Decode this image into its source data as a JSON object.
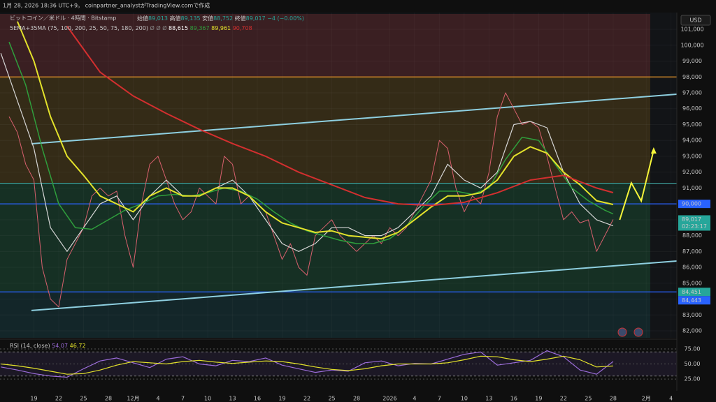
{
  "header": {
    "created": "1月 28, 2026 18:36 UTC+9。 coinpartner_analystがTradingView.comで作成",
    "symbol": "ビットコイン／米ドル · 4時間 · Bitstamp",
    "ohlc": [
      {
        "label": "始値",
        "value": "89,013"
      },
      {
        "label": "高値",
        "value": "89,135"
      },
      {
        "label": "安値",
        "value": "88,752"
      },
      {
        "label": "終値",
        "value": "89,017"
      }
    ],
    "change": "−4 (−0.00%)",
    "indicator": "5EMA+35MA (75, 100, 200, 25, 50, 75, 180, 200)",
    "indicator_icons": "Ø Ø Ø",
    "currency": "USD"
  },
  "chart_data": [
    {
      "type": "line",
      "xlim": [
        -10.1,
        71.7
      ],
      "ylim": [
        81560,
        101970
      ],
      "yticks": [
        {
          "value": 82000,
          "label": "82,000"
        },
        {
          "value": 83000,
          "label": "83,000"
        },
        {
          "value": 84000,
          "label": "84,000"
        },
        {
          "value": 85000,
          "label": "85,000"
        },
        {
          "value": 86000,
          "label": "86,000"
        },
        {
          "value": 87000,
          "label": "87,000"
        },
        {
          "value": 88000,
          "label": "88,000"
        },
        {
          "value": 89000,
          "label": "89,000"
        },
        {
          "value": 90000,
          "label": "90,000"
        },
        {
          "value": 91000,
          "label": "91,000"
        },
        {
          "value": 92000,
          "label": "92,000"
        },
        {
          "value": 93000,
          "label": "93,000"
        },
        {
          "value": 94000,
          "label": "94,000"
        },
        {
          "value": 95000,
          "label": "95,000"
        },
        {
          "value": 96000,
          "label": "96,000"
        },
        {
          "value": 97000,
          "label": "97,000"
        },
        {
          "value": 98000,
          "label": "98,000"
        },
        {
          "value": 99000,
          "label": "99,000"
        },
        {
          "value": 100000,
          "label": "100,000"
        },
        {
          "value": 101000,
          "label": "101,000"
        }
      ],
      "xticks": [
        {
          "value": -6,
          "label": "19"
        },
        {
          "value": -3,
          "label": "22"
        },
        {
          "value": 0,
          "label": "25"
        },
        {
          "value": 3,
          "label": "28"
        },
        {
          "value": 6,
          "label": "12月"
        },
        {
          "value": 9,
          "label": "4"
        },
        {
          "value": 12,
          "label": "7"
        },
        {
          "value": 15,
          "label": "10"
        },
        {
          "value": 18,
          "label": "13"
        },
        {
          "value": 21,
          "label": "16"
        },
        {
          "value": 24,
          "label": "19"
        },
        {
          "value": 27,
          "label": "22"
        },
        {
          "value": 30,
          "label": "25"
        },
        {
          "value": 33,
          "label": "28"
        },
        {
          "value": 37,
          "label": "2026"
        },
        {
          "value": 40,
          "label": "4"
        },
        {
          "value": 43,
          "label": "7"
        },
        {
          "value": 46,
          "label": "10"
        },
        {
          "value": 49,
          "label": "13"
        },
        {
          "value": 52,
          "label": "16"
        },
        {
          "value": 55,
          "label": "19"
        },
        {
          "value": 58,
          "label": "22"
        },
        {
          "value": 61,
          "label": "25"
        },
        {
          "value": 64,
          "label": "28"
        },
        {
          "value": 68,
          "label": "2月"
        },
        {
          "value": 71,
          "label": "4"
        }
      ],
      "zones": [
        {
          "from": 98000,
          "to": 101970,
          "color": "#3a1f22"
        },
        {
          "from": 91300,
          "to": 98000,
          "color": "#342b17"
        },
        {
          "from": 84451,
          "to": 91300,
          "color": "#163024"
        },
        {
          "from": 81560,
          "to": 84451,
          "color": "#132629"
        }
      ],
      "hlines": [
        {
          "value": 98000,
          "color": "#e8962a"
        },
        {
          "value": 91300,
          "color": "#3fa5a0"
        },
        {
          "value": 90000,
          "color": "#2962ff"
        },
        {
          "value": 84451,
          "color": "#2962ff"
        }
      ],
      "trendlines": [
        {
          "x": [
            -6.3,
            71.7
          ],
          "values": [
            93790,
            96910
          ],
          "color": "#8ecfe0"
        },
        {
          "x": [
            -6.3,
            71.7
          ],
          "values": [
            83280,
            86400
          ],
          "color": "#8ecfe0"
        }
      ],
      "projection": {
        "x": [
          64.8,
          66.2,
          67.4,
          68.9
        ],
        "values": [
          88995,
          91326,
          90180,
          93392
        ],
        "color": "#f5f53a"
      },
      "series": [
        {
          "color": "#d9606e",
          "width": 1,
          "x": [
            -9,
            -8,
            -7,
            -6,
            -5,
            -4,
            -3,
            -2,
            -1,
            0,
            1,
            2,
            3,
            4,
            5,
            6,
            7,
            8,
            9,
            10,
            11,
            12,
            13,
            14,
            15,
            16,
            17,
            18,
            19,
            20,
            21,
            22,
            23,
            24,
            25,
            26,
            27,
            28,
            29,
            30,
            31,
            32,
            33,
            34,
            35,
            36,
            37,
            38,
            39,
            40,
            41,
            42,
            43,
            44,
            45,
            46,
            47,
            48,
            49,
            50,
            51,
            52,
            53,
            54,
            55,
            56,
            57,
            58,
            59,
            60,
            61,
            62,
            63,
            64
          ],
          "values": [
            95500,
            94500,
            92500,
            91500,
            86000,
            84000,
            83500,
            86500,
            87500,
            88500,
            90500,
            91000,
            90500,
            90800,
            88000,
            86000,
            90000,
            92500,
            93000,
            91500,
            90000,
            89000,
            89500,
            91000,
            90500,
            90000,
            93000,
            92500,
            90000,
            90500,
            90000,
            89500,
            88000,
            86500,
            87500,
            86000,
            85500,
            88000,
            88500,
            89000,
            88000,
            87500,
            87000,
            87500,
            88000,
            87500,
            88500,
            88000,
            88500,
            89500,
            90500,
            91500,
            94000,
            93500,
            91000,
            89500,
            90500,
            90000,
            92000,
            95500,
            97000,
            96000,
            95000,
            95200,
            94800,
            93000,
            91000,
            89000,
            89500,
            88800,
            89000,
            87000,
            88000,
            89017
          ]
        },
        {
          "color": "#d6d6d6",
          "width": 1.2,
          "last_label": "88,615",
          "x": [
            -10,
            -8,
            -6,
            -4,
            -2,
            0,
            2,
            4,
            6,
            8,
            10,
            12,
            14,
            16,
            18,
            20,
            22,
            24,
            26,
            28,
            30,
            32,
            34,
            36,
            38,
            40,
            42,
            44,
            46,
            48,
            50,
            52,
            54,
            56,
            58,
            60,
            62,
            64
          ],
          "values": [
            99500,
            96500,
            93500,
            88500,
            87000,
            88500,
            90000,
            90500,
            89000,
            90500,
            91500,
            90500,
            90500,
            91000,
            91500,
            90500,
            89000,
            87500,
            87000,
            87500,
            88500,
            88500,
            88000,
            88000,
            88500,
            89500,
            90500,
            92500,
            91500,
            91000,
            92000,
            95000,
            95200,
            94800,
            92000,
            90000,
            89000,
            88615
          ]
        },
        {
          "color": "#2f9e3c",
          "width": 1.5,
          "last_label": "89,367",
          "x": [
            -9,
            -7,
            -5,
            -3,
            -1,
            1,
            3,
            5,
            7,
            9,
            11,
            13,
            15,
            17,
            19,
            21,
            23,
            25,
            27,
            29,
            31,
            33,
            35,
            37,
            39,
            41,
            43,
            45,
            47,
            49,
            51,
            53,
            55,
            57,
            59,
            61,
            63,
            64
          ],
          "values": [
            100200,
            97500,
            93500,
            90000,
            88500,
            88400,
            89000,
            89600,
            90000,
            90500,
            90600,
            90500,
            90700,
            91000,
            90800,
            90300,
            89500,
            88800,
            88300,
            88000,
            87700,
            87500,
            87500,
            87800,
            88600,
            89800,
            90800,
            90800,
            90600,
            91000,
            92800,
            94200,
            94000,
            92500,
            91000,
            90200,
            89600,
            89367
          ]
        },
        {
          "color": "#e3e22b",
          "width": 2,
          "last_label": "89,961",
          "x": [
            -8,
            -6,
            -4,
            -2,
            0,
            2,
            4,
            6,
            8,
            10,
            12,
            14,
            16,
            18,
            20,
            22,
            24,
            26,
            28,
            30,
            32,
            34,
            36,
            38,
            40,
            42,
            44,
            46,
            48,
            50,
            52,
            54,
            56,
            58,
            60,
            62,
            64
          ],
          "values": [
            101500,
            99000,
            95500,
            93000,
            91800,
            90500,
            90000,
            89500,
            90500,
            91000,
            90500,
            90500,
            91000,
            91000,
            90500,
            89500,
            88800,
            88500,
            88200,
            88300,
            88000,
            87900,
            87800,
            88200,
            89000,
            89800,
            90500,
            90500,
            90700,
            91500,
            93000,
            93600,
            93200,
            92000,
            91200,
            90200,
            89961
          ]
        },
        {
          "color": "#d32f2f",
          "width": 2,
          "last_label": "90,708",
          "x": [
            -2,
            2,
            6,
            10,
            14,
            18,
            22,
            26,
            30,
            34,
            38,
            42,
            46,
            50,
            54,
            58,
            62,
            64
          ],
          "values": [
            101200,
            98300,
            96800,
            95700,
            94700,
            93800,
            93000,
            92000,
            91200,
            90400,
            90000,
            89900,
            90100,
            90700,
            91500,
            91800,
            91000,
            90708
          ]
        }
      ],
      "price_labels": [
        {
          "value": 90000,
          "label": "90,000",
          "color": "#2962ff"
        },
        {
          "value": 89017,
          "label": "89,017",
          "sub": "02:23:17",
          "color": "#26a69a"
        },
        {
          "value": 84451,
          "label": "84,451",
          "color": "#26a69a"
        },
        {
          "value": 84443,
          "label": "84,443",
          "color": "#2962ff"
        }
      ]
    },
    {
      "type": "line",
      "title": "RSI (14, close)",
      "xlim": [
        -10.1,
        71.7
      ],
      "ylim": [
        17,
        90
      ],
      "band": [
        30,
        70
      ],
      "yticks": [
        {
          "value": 25,
          "label": "25.00"
        },
        {
          "value": 50,
          "label": "50.00"
        },
        {
          "value": 75,
          "label": "75.00"
        }
      ],
      "series": [
        {
          "color": "#9c6ddb",
          "x": [
            -10,
            -8,
            -6,
            -4,
            -2,
            0,
            2,
            4,
            6,
            8,
            10,
            12,
            14,
            16,
            18,
            20,
            22,
            24,
            26,
            28,
            30,
            32,
            34,
            36,
            38,
            40,
            42,
            44,
            46,
            48,
            50,
            52,
            54,
            56,
            58,
            60,
            62,
            64
          ],
          "values": [
            45,
            40,
            34,
            30,
            28,
            42,
            55,
            60,
            52,
            44,
            58,
            62,
            50,
            47,
            56,
            54,
            60,
            48,
            42,
            36,
            40,
            38,
            52,
            55,
            47,
            51,
            50,
            58,
            66,
            70,
            48,
            52,
            56,
            72,
            62,
            40,
            33,
            54.07
          ]
        },
        {
          "color": "#e3e22b",
          "x": [
            -10,
            -8,
            -6,
            -4,
            -2,
            0,
            2,
            4,
            6,
            8,
            10,
            12,
            14,
            16,
            18,
            20,
            22,
            24,
            26,
            28,
            30,
            32,
            34,
            36,
            38,
            40,
            42,
            44,
            46,
            48,
            50,
            52,
            54,
            56,
            58,
            60,
            62,
            64
          ],
          "values": [
            50,
            47,
            43,
            38,
            33,
            34,
            40,
            48,
            54,
            52,
            50,
            54,
            56,
            53,
            51,
            53,
            55,
            54,
            50,
            45,
            41,
            39,
            42,
            47,
            50,
            50,
            50,
            52,
            57,
            63,
            62,
            57,
            54,
            58,
            63,
            57,
            45,
            46.72
          ]
        }
      ]
    }
  ]
}
